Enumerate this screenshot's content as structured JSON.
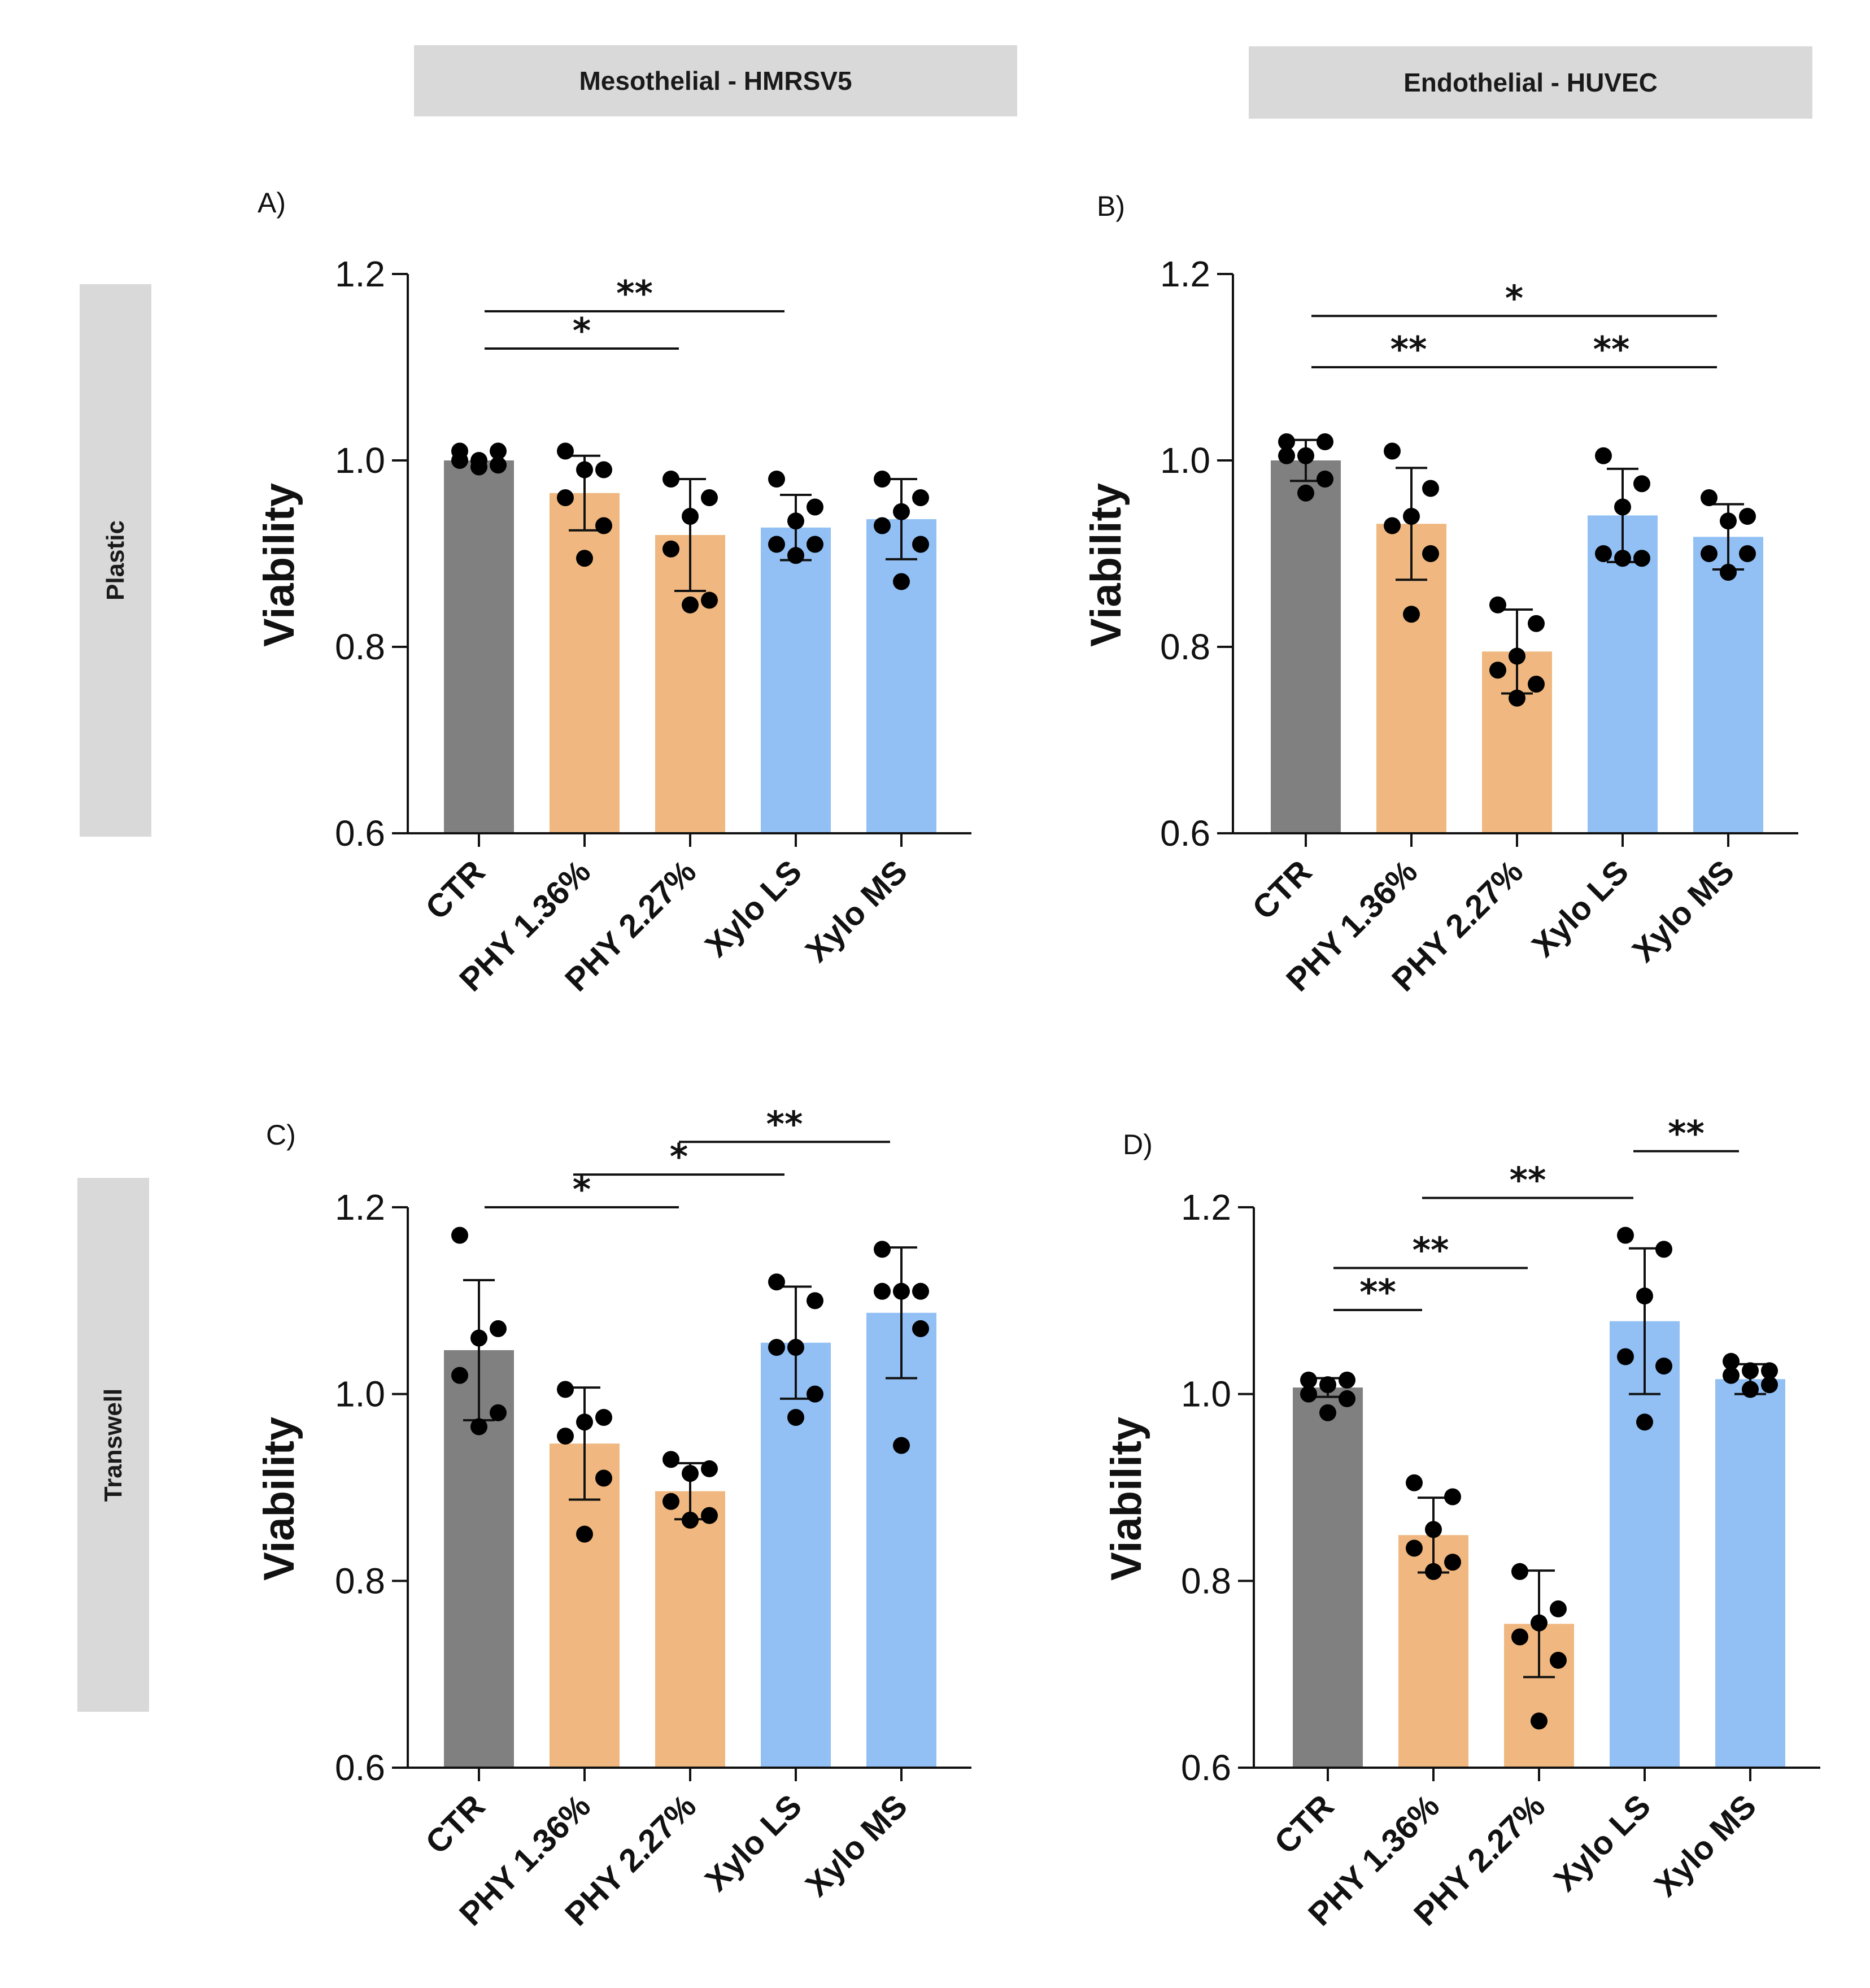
{
  "column_headers": [
    "Mesothelial - HMRSV5",
    "Endothelial - HUVEC"
  ],
  "row_headers": [
    "Plastic",
    "Transwell"
  ],
  "colors": {
    "CTR": "#808080",
    "PHY": "#f0b880",
    "Xylo": "#92c0f4",
    "point": "#000000",
    "header_bg": "#d9d9d9"
  },
  "chart_data": [
    {
      "panel": "A)",
      "type": "bar",
      "ylabel": "Viability",
      "ylim": [
        0.6,
        1.2
      ],
      "yticks": [
        0.6,
        0.8,
        1.0,
        1.2
      ],
      "ytick_labels": [
        "0.6",
        "0.8",
        "1.0",
        "1.2"
      ],
      "categories": [
        "CTR",
        "PHY 1.36%",
        "PHY 2.27%",
        "Xylo LS",
        "Xylo MS"
      ],
      "values": [
        1.0,
        0.965,
        0.92,
        0.928,
        0.937
      ],
      "sd": [
        0.0,
        0.04,
        0.06,
        0.035,
        0.043
      ],
      "points": [
        [
          1.01,
          1.01,
          1.0,
          1.0,
          0.995,
          0.993
        ],
        [
          1.01,
          0.99,
          0.99,
          0.96,
          0.93,
          0.895
        ],
        [
          0.98,
          0.96,
          0.94,
          0.905,
          0.85,
          0.845
        ],
        [
          0.98,
          0.95,
          0.935,
          0.91,
          0.91,
          0.898
        ],
        [
          0.98,
          0.96,
          0.945,
          0.93,
          0.91,
          0.87
        ]
      ],
      "significance": [
        {
          "from": 0,
          "to": 3,
          "label": "**",
          "y": 1.16
        },
        {
          "from": 0,
          "to": 2,
          "label": "*",
          "y": 1.12
        }
      ]
    },
    {
      "panel": "B)",
      "type": "bar",
      "ylabel": "Viability",
      "ylim": [
        0.6,
        1.2
      ],
      "yticks": [
        0.6,
        0.8,
        1.0,
        1.2
      ],
      "ytick_labels": [
        "0.6",
        "0.8",
        "1.0",
        "1.2"
      ],
      "categories": [
        "CTR",
        "PHY 1.36%",
        "PHY 2.27%",
        "Xylo LS",
        "Xylo MS"
      ],
      "values": [
        1.0,
        0.932,
        0.795,
        0.941,
        0.918
      ],
      "sd": [
        0.022,
        0.06,
        0.045,
        0.05,
        0.035
      ],
      "points": [
        [
          1.02,
          1.02,
          1.005,
          1.005,
          0.98,
          0.965
        ],
        [
          1.01,
          0.97,
          0.94,
          0.93,
          0.9,
          0.835
        ],
        [
          0.845,
          0.825,
          0.79,
          0.775,
          0.76,
          0.745
        ],
        [
          1.005,
          0.975,
          0.95,
          0.9,
          0.895,
          0.895
        ],
        [
          0.96,
          0.94,
          0.935,
          0.9,
          0.9,
          0.88
        ]
      ],
      "significance": [
        {
          "from": 0,
          "to": 4,
          "label": "*",
          "y": 1.155
        },
        {
          "from": 0,
          "to": 2,
          "label": "**",
          "y": 1.1
        },
        {
          "from": 2,
          "to": 4,
          "label": "**",
          "y": 1.1
        }
      ]
    },
    {
      "panel": "C)",
      "type": "bar",
      "ylabel": "Viability",
      "ylim": [
        0.6,
        1.2
      ],
      "yticks": [
        0.6,
        0.8,
        1.0,
        1.2
      ],
      "ytick_labels": [
        "0.6",
        "0.8",
        "1.0",
        "1.2"
      ],
      "categories": [
        "CTR",
        "PHY 1.36%",
        "PHY 2.27%",
        "Xylo LS",
        "Xylo MS"
      ],
      "values": [
        1.047,
        0.947,
        0.896,
        1.055,
        1.087
      ],
      "sd": [
        0.075,
        0.06,
        0.03,
        0.06,
        0.07
      ],
      "points": [
        [
          1.17,
          1.07,
          1.06,
          1.02,
          0.98,
          0.965
        ],
        [
          1.005,
          0.975,
          0.97,
          0.955,
          0.91,
          0.85
        ],
        [
          0.93,
          0.92,
          0.915,
          0.885,
          0.87,
          0.865
        ],
        [
          1.12,
          1.1,
          1.05,
          1.05,
          1.0,
          0.975
        ],
        [
          1.155,
          1.11,
          1.11,
          1.11,
          1.07,
          0.945
        ]
      ],
      "significance": [
        {
          "from": 0,
          "to": 2,
          "label": "*",
          "y": 1.2
        },
        {
          "from": 1,
          "to": 3,
          "label": "*",
          "y": 1.235
        },
        {
          "from": 2,
          "to": 4,
          "label": "**",
          "y": 1.27
        }
      ]
    },
    {
      "panel": "D)",
      "type": "bar",
      "ylabel": "Viability",
      "ylim": [
        0.6,
        1.2
      ],
      "yticks": [
        0.6,
        0.8,
        1.0,
        1.2
      ],
      "ytick_labels": [
        "0.6",
        "0.8",
        "1.0",
        "1.2"
      ],
      "categories": [
        "CTR",
        "PHY 1.36%",
        "PHY 2.27%",
        "Xylo LS",
        "Xylo MS"
      ],
      "values": [
        1.007,
        0.849,
        0.754,
        1.078,
        1.016
      ],
      "sd": [
        0.01,
        0.04,
        0.057,
        0.078,
        0.016
      ],
      "points": [
        [
          1.015,
          1.015,
          1.01,
          1.0,
          0.995,
          0.98
        ],
        [
          0.905,
          0.89,
          0.855,
          0.835,
          0.82,
          0.81
        ],
        [
          0.81,
          0.77,
          0.755,
          0.74,
          0.715,
          0.65
        ],
        [
          1.17,
          1.155,
          1.105,
          1.04,
          1.03,
          0.97
        ],
        [
          1.035,
          1.025,
          1.025,
          1.02,
          1.01,
          1.005
        ]
      ],
      "significance": [
        {
          "from": 0,
          "to": 1,
          "label": "**",
          "y": 1.09
        },
        {
          "from": 0,
          "to": 2,
          "label": "**",
          "y": 1.135
        },
        {
          "from": 1,
          "to": 3,
          "label": "**",
          "y": 1.21
        },
        {
          "from": 3,
          "to": 4,
          "label": "**",
          "y": 1.26
        }
      ]
    }
  ]
}
